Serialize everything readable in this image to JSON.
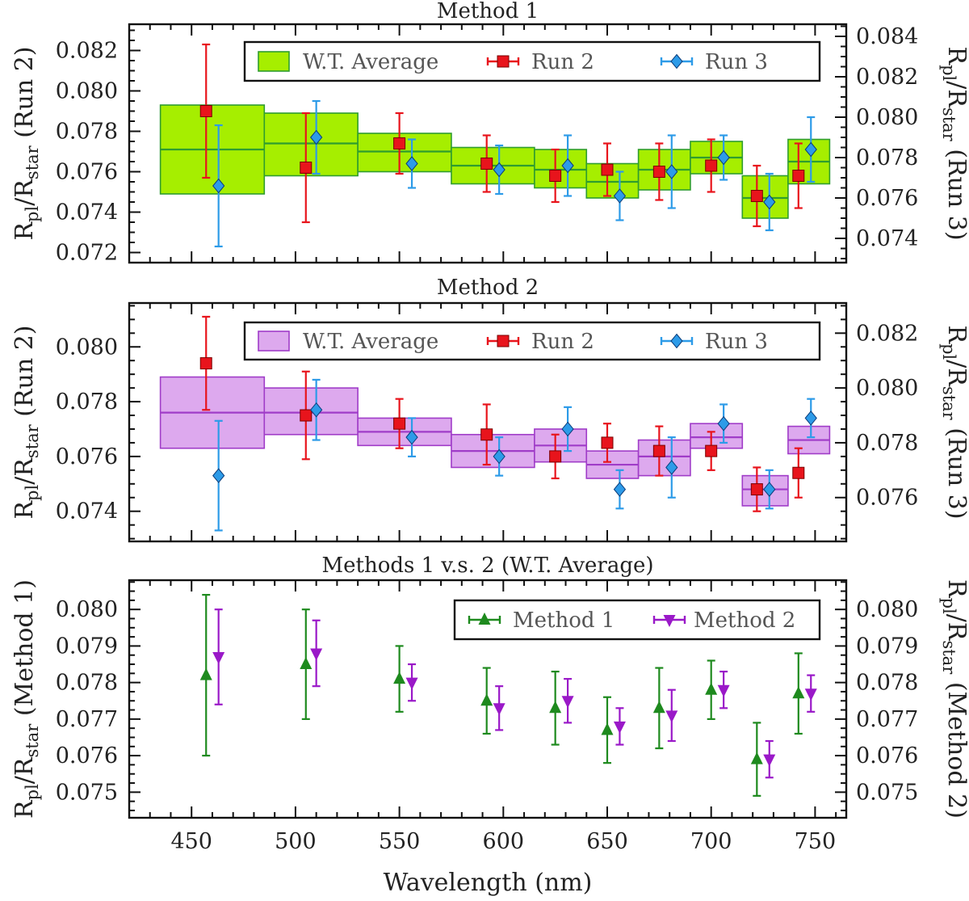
{
  "chart_data": [
    {
      "type": "scatter",
      "title": "Method 1",
      "xlabel": "",
      "ylabel_left": {
        "main": "R",
        "sub1": "pl",
        "mid": "/R",
        "sub2": "star",
        "tail": " (Run 2)"
      },
      "ylabel_right": {
        "main": "R",
        "sub1": "pl",
        "mid": "/R",
        "sub2": "star",
        "tail": " (Run 3)"
      },
      "xlim": [
        420,
        765
      ],
      "ylim_left": [
        0.0715,
        0.0833
      ],
      "ylim_right": [
        0.0728,
        0.0846
      ],
      "left_ticks": [
        "0.072",
        "0.074",
        "0.076",
        "0.078",
        "0.080",
        "0.082"
      ],
      "right_ticks": [
        "0.074",
        "0.076",
        "0.078",
        "0.080",
        "0.082",
        "0.084"
      ],
      "legend": {
        "avg": "W.T. Average",
        "run2": "Run 2",
        "run3": "Run 3"
      },
      "avg_color": "#a6ee00",
      "avg_edge": "#2f9d2f",
      "boxes": [
        {
          "x0": 435,
          "x1": 485,
          "y": 0.0771,
          "lo": 0.0749,
          "hi": 0.0793
        },
        {
          "x0": 485,
          "x1": 530,
          "y": 0.0774,
          "lo": 0.0758,
          "hi": 0.0789
        },
        {
          "x0": 530,
          "x1": 575,
          "y": 0.077,
          "lo": 0.076,
          "hi": 0.0779
        },
        {
          "x0": 575,
          "x1": 615,
          "y": 0.0763,
          "lo": 0.0754,
          "hi": 0.0772
        },
        {
          "x0": 615,
          "x1": 640,
          "y": 0.0761,
          "lo": 0.0752,
          "hi": 0.0771
        },
        {
          "x0": 640,
          "x1": 665,
          "y": 0.0755,
          "lo": 0.0747,
          "hi": 0.0764
        },
        {
          "x0": 665,
          "x1": 690,
          "y": 0.0761,
          "lo": 0.0751,
          "hi": 0.0771
        },
        {
          "x0": 690,
          "x1": 715,
          "y": 0.0767,
          "lo": 0.0759,
          "hi": 0.0775
        },
        {
          "x0": 715,
          "x1": 737,
          "y": 0.0747,
          "lo": 0.0737,
          "hi": 0.0758
        },
        {
          "x0": 737,
          "x1": 757,
          "y": 0.0765,
          "lo": 0.0754,
          "hi": 0.0776
        }
      ],
      "series": [
        {
          "name": "Run 2",
          "axis": "left",
          "marker": "square",
          "color": "#e8141c",
          "x": [
            457,
            505,
            550,
            592,
            625,
            650,
            675,
            700,
            722,
            742
          ],
          "y": [
            0.079,
            0.0762,
            0.0774,
            0.0764,
            0.0758,
            0.0761,
            0.076,
            0.0763,
            0.0748,
            0.0758
          ],
          "err": [
            0.0033,
            0.0027,
            0.0015,
            0.0014,
            0.0013,
            0.0013,
            0.0014,
            0.0013,
            0.0015,
            0.0016
          ]
        },
        {
          "name": "Run 3",
          "axis": "right",
          "marker": "diamond",
          "color": "#2d9be8",
          "x": [
            463,
            510,
            556,
            598,
            631,
            656,
            681,
            706,
            728,
            748
          ],
          "y": [
            0.0766,
            0.079,
            0.0777,
            0.0774,
            0.0776,
            0.0761,
            0.0773,
            0.078,
            0.0758,
            0.0784
          ],
          "err": [
            0.003,
            0.0018,
            0.0012,
            0.0012,
            0.0015,
            0.0012,
            0.0018,
            0.0011,
            0.0014,
            0.0016
          ]
        }
      ]
    },
    {
      "type": "scatter",
      "title": "Method 2",
      "xlabel": "",
      "ylabel_left": {
        "main": "R",
        "sub1": "pl",
        "mid": "/R",
        "sub2": "star",
        "tail": " (Run 2)"
      },
      "ylabel_right": {
        "main": "R",
        "sub1": "pl",
        "mid": "/R",
        "sub2": "star",
        "tail": " (Run 3)"
      },
      "xlim": [
        420,
        765
      ],
      "ylim_left": [
        0.0729,
        0.0816
      ],
      "ylim_right": [
        0.0744,
        0.0831
      ],
      "left_ticks": [
        "0.074",
        "0.076",
        "0.078",
        "0.080"
      ],
      "right_ticks": [
        "0.076",
        "0.078",
        "0.080",
        "0.082"
      ],
      "legend": {
        "avg": "W.T. Average",
        "run2": "Run 2",
        "run3": "Run 3"
      },
      "avg_color": "#dda9ee",
      "avg_edge": "#a03cc8",
      "boxes": [
        {
          "x0": 435,
          "x1": 485,
          "y": 0.0776,
          "lo": 0.0763,
          "hi": 0.0789
        },
        {
          "x0": 485,
          "x1": 530,
          "y": 0.0776,
          "lo": 0.0768,
          "hi": 0.0785
        },
        {
          "x0": 530,
          "x1": 575,
          "y": 0.0769,
          "lo": 0.0764,
          "hi": 0.0774
        },
        {
          "x0": 575,
          "x1": 615,
          "y": 0.0762,
          "lo": 0.0756,
          "hi": 0.0768
        },
        {
          "x0": 615,
          "x1": 640,
          "y": 0.0764,
          "lo": 0.0758,
          "hi": 0.077
        },
        {
          "x0": 640,
          "x1": 665,
          "y": 0.0757,
          "lo": 0.0752,
          "hi": 0.0762
        },
        {
          "x0": 665,
          "x1": 690,
          "y": 0.076,
          "lo": 0.0753,
          "hi": 0.0766
        },
        {
          "x0": 690,
          "x1": 715,
          "y": 0.0767,
          "lo": 0.0763,
          "hi": 0.0772
        },
        {
          "x0": 715,
          "x1": 737,
          "y": 0.0748,
          "lo": 0.0742,
          "hi": 0.0753
        },
        {
          "x0": 737,
          "x1": 757,
          "y": 0.0766,
          "lo": 0.0761,
          "hi": 0.0771
        }
      ],
      "series": [
        {
          "name": "Run 2",
          "axis": "left",
          "marker": "square",
          "color": "#e8141c",
          "x": [
            457,
            505,
            550,
            592,
            625,
            650,
            675,
            700,
            722,
            742
          ],
          "y": [
            0.0794,
            0.0775,
            0.0772,
            0.0768,
            0.076,
            0.0765,
            0.0762,
            0.0762,
            0.0748,
            0.0754
          ],
          "err": [
            0.0017,
            0.0016,
            0.0009,
            0.0011,
            0.0008,
            0.0007,
            0.0009,
            0.0007,
            0.0008,
            0.0009
          ]
        },
        {
          "name": "Run 3",
          "axis": "right",
          "marker": "diamond",
          "color": "#2d9be8",
          "x": [
            463,
            510,
            556,
            598,
            631,
            656,
            681,
            706,
            728,
            748
          ],
          "y": [
            0.0768,
            0.0792,
            0.0782,
            0.0775,
            0.0785,
            0.0763,
            0.0771,
            0.0787,
            0.0763,
            0.0789
          ],
          "err": [
            0.002,
            0.0011,
            0.0007,
            0.0007,
            0.0008,
            0.0007,
            0.0011,
            0.0007,
            0.0007,
            0.0007
          ]
        }
      ]
    },
    {
      "type": "scatter",
      "title": "Methods 1 v.s. 2 (W.T. Average)",
      "xlabel": "Wavelength (nm)",
      "ylabel_left": {
        "main": "R",
        "sub1": "pl",
        "mid": "/R",
        "sub2": "star",
        "tail": " (Method 1)"
      },
      "ylabel_right": {
        "main": "R",
        "sub1": "pl",
        "mid": "/R",
        "sub2": "star",
        "tail": " (Method 2)"
      },
      "xlim": [
        420,
        765
      ],
      "ylim_left": [
        0.0743,
        0.0808
      ],
      "ylim_right": [
        0.0743,
        0.0808
      ],
      "left_ticks": [
        "0.075",
        "0.076",
        "0.077",
        "0.078",
        "0.079",
        "0.080"
      ],
      "right_ticks": [
        "0.075",
        "0.076",
        "0.077",
        "0.078",
        "0.079",
        "0.080"
      ],
      "xticks": [
        "450",
        "500",
        "550",
        "600",
        "650",
        "700",
        "750"
      ],
      "legend": {
        "m1": "Method 1",
        "m2": "Method 2"
      },
      "series": [
        {
          "name": "Method 1",
          "axis": "left",
          "marker": "triangle-up",
          "color": "#1e8a1e",
          "x": [
            457,
            505,
            550,
            592,
            625,
            650,
            675,
            700,
            722,
            742
          ],
          "y": [
            0.0782,
            0.0785,
            0.0781,
            0.0775,
            0.0773,
            0.0767,
            0.0773,
            0.0778,
            0.0759,
            0.0777
          ],
          "err": [
            0.0022,
            0.0015,
            0.0009,
            0.0009,
            0.001,
            0.0009,
            0.0011,
            0.0008,
            0.001,
            0.0011
          ]
        },
        {
          "name": "Method 2",
          "axis": "right",
          "marker": "triangle-down",
          "color": "#9a19c8",
          "x": [
            463,
            510,
            556,
            598,
            631,
            656,
            681,
            706,
            728,
            748
          ],
          "y": [
            0.0787,
            0.0788,
            0.078,
            0.0773,
            0.0775,
            0.0768,
            0.0771,
            0.0778,
            0.0759,
            0.0777
          ],
          "err": [
            0.0013,
            0.0009,
            0.0005,
            0.0006,
            0.0006,
            0.0005,
            0.0007,
            0.0005,
            0.0005,
            0.0005
          ]
        }
      ]
    }
  ]
}
